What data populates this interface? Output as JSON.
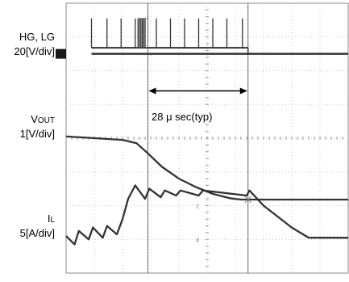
{
  "chart_data": {
    "type": "line",
    "title": "",
    "grid": true,
    "x": {
      "divisions": 10,
      "unit": "div"
    },
    "y": {
      "divisions": 8,
      "unit": "div"
    },
    "cursors_x_div": [
      2.9,
      6.45
    ],
    "channels": [
      {
        "name": "HG, LG",
        "name_main": "HG, LG",
        "name_sub": "",
        "scale": "20[V/div]",
        "color": "#333333",
        "ground_marker_y_div": 6.5,
        "pulse_x_div": [
          0.9,
          1.45,
          1.95,
          2.45,
          2.55,
          2.6,
          2.65,
          2.7,
          2.75,
          2.8,
          3.2,
          3.7,
          4.2,
          4.7,
          5.2,
          5.7,
          6.25
        ],
        "pulse_top_y_div": 7.55,
        "level_high_y_div": 6.68,
        "level_low_y_div": 6.5,
        "high_end_x_div": 6.45,
        "ringing_x_div": [
          2.55,
          2.9
        ]
      },
      {
        "name": "VOUT",
        "name_main": "V",
        "name_sub": "OUT",
        "scale": "1[V/div]",
        "color": "#333333",
        "points": [
          [
            0.0,
            4.05
          ],
          [
            2.0,
            3.95
          ],
          [
            2.5,
            3.85
          ],
          [
            2.9,
            3.55
          ],
          [
            3.4,
            3.15
          ],
          [
            4.0,
            2.8
          ],
          [
            4.6,
            2.55
          ],
          [
            5.2,
            2.35
          ],
          [
            5.8,
            2.22
          ],
          [
            6.2,
            2.18
          ],
          [
            6.45,
            2.18
          ],
          [
            7.5,
            2.18
          ],
          [
            10.0,
            2.18
          ]
        ]
      },
      {
        "name": "IL",
        "name_main": "I",
        "name_sub": "L",
        "scale": "5[A/div]",
        "color": "#333333",
        "points": [
          [
            0.0,
            1.1
          ],
          [
            0.3,
            0.85
          ],
          [
            0.45,
            1.25
          ],
          [
            0.8,
            1.0
          ],
          [
            0.95,
            1.35
          ],
          [
            1.3,
            1.05
          ],
          [
            1.45,
            1.4
          ],
          [
            1.8,
            1.15
          ],
          [
            2.0,
            1.6
          ],
          [
            2.2,
            2.2
          ],
          [
            2.45,
            2.6
          ],
          [
            2.8,
            2.2
          ],
          [
            2.95,
            2.5
          ],
          [
            3.35,
            2.25
          ],
          [
            3.5,
            2.45
          ],
          [
            3.9,
            2.3
          ],
          [
            4.05,
            2.45
          ],
          [
            4.7,
            2.3
          ],
          [
            4.85,
            2.45
          ],
          [
            6.4,
            2.3
          ],
          [
            6.5,
            2.45
          ],
          [
            7.0,
            2.0
          ],
          [
            8.0,
            1.35
          ],
          [
            8.6,
            1.05
          ],
          [
            10.0,
            1.05
          ]
        ]
      }
    ],
    "annotations": [
      {
        "text": "28 μ sec(typ)",
        "from_x_div": 2.9,
        "to_x_div": 6.45,
        "y_div": 5.4
      }
    ],
    "graticule_labels": [
      {
        "text": "2",
        "y_div": 2.0
      },
      {
        "text": "4",
        "y_div": 1.0
      }
    ]
  }
}
